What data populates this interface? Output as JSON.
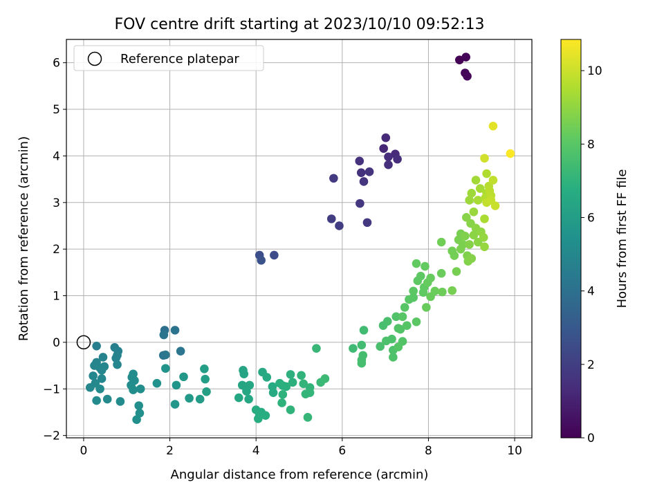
{
  "chart_data": {
    "type": "scatter",
    "title": "FOV centre drift starting at 2023/10/10 09:52:13",
    "xlabel": "Angular distance from reference (arcmin)",
    "ylabel": "Rotation from reference (arcmin)",
    "colorbar_label": "Hours from first FF file",
    "xlim": [
      -0.4,
      10.4
    ],
    "ylim": [
      -2.05,
      6.5
    ],
    "clim": [
      0,
      10.85
    ],
    "colormap": "viridis",
    "grid": true,
    "legend_position": "top-left",
    "x_ticks": [
      0,
      2,
      4,
      6,
      8,
      10
    ],
    "x_tick_labels": [
      "0",
      "2",
      "4",
      "6",
      "8",
      "10"
    ],
    "y_ticks": [
      -2,
      -1,
      0,
      1,
      2,
      3,
      4,
      5,
      6
    ],
    "y_tick_labels": [
      "−2",
      "−1",
      "0",
      "1",
      "2",
      "3",
      "4",
      "5",
      "6"
    ],
    "c_ticks": [
      0,
      2,
      4,
      6,
      8,
      10
    ],
    "c_tick_labels": [
      "0",
      "2",
      "4",
      "6",
      "8",
      "10"
    ],
    "reference": {
      "label": "Reference platepar",
      "x": 0,
      "y": 0
    },
    "points": [
      {
        "x": 8.72,
        "y": 6.06,
        "c": 0.05
      },
      {
        "x": 8.87,
        "y": 6.12,
        "c": 0.1
      },
      {
        "x": 8.85,
        "y": 5.78,
        "c": 0.15
      },
      {
        "x": 8.9,
        "y": 5.71,
        "c": 0.2
      },
      {
        "x": 6.96,
        "y": 4.16,
        "c": 1.2
      },
      {
        "x": 7.01,
        "y": 4.39,
        "c": 1.25
      },
      {
        "x": 7.23,
        "y": 4.04,
        "c": 1.3
      },
      {
        "x": 7.07,
        "y": 3.98,
        "c": 1.35
      },
      {
        "x": 7.28,
        "y": 3.93,
        "c": 1.4
      },
      {
        "x": 7.07,
        "y": 3.81,
        "c": 1.45
      },
      {
        "x": 6.4,
        "y": 3.89,
        "c": 1.5
      },
      {
        "x": 6.44,
        "y": 3.64,
        "c": 1.55
      },
      {
        "x": 6.63,
        "y": 3.66,
        "c": 1.6
      },
      {
        "x": 6.5,
        "y": 3.45,
        "c": 1.65
      },
      {
        "x": 6.41,
        "y": 2.98,
        "c": 1.7
      },
      {
        "x": 6.58,
        "y": 2.57,
        "c": 1.75
      },
      {
        "x": 5.8,
        "y": 3.52,
        "c": 1.85
      },
      {
        "x": 5.75,
        "y": 2.65,
        "c": 1.9
      },
      {
        "x": 5.93,
        "y": 2.5,
        "c": 1.95
      },
      {
        "x": 4.42,
        "y": 1.87,
        "c": 2.5
      },
      {
        "x": 4.08,
        "y": 1.87,
        "c": 2.6
      },
      {
        "x": 4.12,
        "y": 1.76,
        "c": 2.7
      },
      {
        "x": 1.88,
        "y": 0.26,
        "c": 4.0
      },
      {
        "x": 2.12,
        "y": 0.26,
        "c": 4.1
      },
      {
        "x": 1.86,
        "y": 0.16,
        "c": 4.15
      },
      {
        "x": 2.25,
        "y": -0.19,
        "c": 4.2
      },
      {
        "x": 1.85,
        "y": -0.28,
        "c": 4.25
      },
      {
        "x": 1.9,
        "y": -0.27,
        "c": 4.3
      },
      {
        "x": 0.3,
        "y": -0.08,
        "c": 4.6
      },
      {
        "x": 0.72,
        "y": -0.11,
        "c": 4.65
      },
      {
        "x": 0.8,
        "y": -0.19,
        "c": 4.7
      },
      {
        "x": 0.45,
        "y": -0.32,
        "c": 4.75
      },
      {
        "x": 0.78,
        "y": -0.28,
        "c": 4.8
      },
      {
        "x": 0.75,
        "y": -0.34,
        "c": 4.8
      },
      {
        "x": 0.25,
        "y": -0.5,
        "c": 4.85
      },
      {
        "x": 0.3,
        "y": -0.43,
        "c": 4.85
      },
      {
        "x": 0.48,
        "y": -0.52,
        "c": 4.9
      },
      {
        "x": 0.38,
        "y": -0.55,
        "c": 4.9
      },
      {
        "x": 0.42,
        "y": -0.6,
        "c": 4.95
      },
      {
        "x": 0.78,
        "y": -0.48,
        "c": 4.95
      },
      {
        "x": 0.22,
        "y": -0.72,
        "c": 5.0
      },
      {
        "x": 0.42,
        "y": -0.78,
        "c": 5.0
      },
      {
        "x": 0.27,
        "y": -0.88,
        "c": 5.05
      },
      {
        "x": 0.15,
        "y": -0.97,
        "c": 5.05
      },
      {
        "x": 0.38,
        "y": -1.0,
        "c": 5.1
      },
      {
        "x": 0.55,
        "y": -1.22,
        "c": 5.1
      },
      {
        "x": 0.3,
        "y": -1.25,
        "c": 5.15
      },
      {
        "x": 0.85,
        "y": -1.27,
        "c": 5.15
      },
      {
        "x": 1.15,
        "y": -0.68,
        "c": 5.2
      },
      {
        "x": 1.12,
        "y": -0.75,
        "c": 5.2
      },
      {
        "x": 1.18,
        "y": -0.82,
        "c": 5.25
      },
      {
        "x": 1.1,
        "y": -0.92,
        "c": 5.25
      },
      {
        "x": 1.15,
        "y": -1.02,
        "c": 5.3
      },
      {
        "x": 1.32,
        "y": -1.0,
        "c": 5.3
      },
      {
        "x": 1.28,
        "y": -1.36,
        "c": 5.35
      },
      {
        "x": 1.3,
        "y": -1.52,
        "c": 5.35
      },
      {
        "x": 1.23,
        "y": -1.66,
        "c": 5.4
      },
      {
        "x": 1.7,
        "y": -0.88,
        "c": 5.45
      },
      {
        "x": 1.9,
        "y": -0.56,
        "c": 5.5
      },
      {
        "x": 2.15,
        "y": -0.92,
        "c": 5.6
      },
      {
        "x": 2.12,
        "y": -1.33,
        "c": 5.65
      },
      {
        "x": 2.32,
        "y": -0.74,
        "c": 5.75
      },
      {
        "x": 2.45,
        "y": -1.2,
        "c": 5.8
      },
      {
        "x": 2.7,
        "y": -1.22,
        "c": 5.95
      },
      {
        "x": 2.8,
        "y": -0.57,
        "c": 6.0
      },
      {
        "x": 2.82,
        "y": -0.79,
        "c": 6.05
      },
      {
        "x": 2.85,
        "y": -1.06,
        "c": 6.1
      },
      {
        "x": 3.7,
        "y": -0.6,
        "c": 6.3
      },
      {
        "x": 3.72,
        "y": -0.68,
        "c": 6.3
      },
      {
        "x": 3.68,
        "y": -0.92,
        "c": 6.35
      },
      {
        "x": 3.75,
        "y": -0.95,
        "c": 6.35
      },
      {
        "x": 3.85,
        "y": -0.92,
        "c": 6.4
      },
      {
        "x": 3.78,
        "y": -1.05,
        "c": 6.4
      },
      {
        "x": 3.6,
        "y": -1.19,
        "c": 6.45
      },
      {
        "x": 3.83,
        "y": -1.22,
        "c": 6.45
      },
      {
        "x": 4.15,
        "y": -0.64,
        "c": 6.5
      },
      {
        "x": 4.25,
        "y": -0.75,
        "c": 6.55
      },
      {
        "x": 4.38,
        "y": -0.95,
        "c": 6.6
      },
      {
        "x": 4.4,
        "y": -1.08,
        "c": 6.6
      },
      {
        "x": 4.0,
        "y": -1.45,
        "c": 6.65
      },
      {
        "x": 4.12,
        "y": -1.5,
        "c": 6.65
      },
      {
        "x": 4.08,
        "y": -1.56,
        "c": 6.7
      },
      {
        "x": 4.05,
        "y": -1.64,
        "c": 6.7
      },
      {
        "x": 4.22,
        "y": -1.57,
        "c": 6.75
      },
      {
        "x": 4.55,
        "y": -0.88,
        "c": 6.8
      },
      {
        "x": 4.62,
        "y": -0.93,
        "c": 6.85
      },
      {
        "x": 4.7,
        "y": -0.95,
        "c": 6.85
      },
      {
        "x": 4.8,
        "y": -0.69,
        "c": 6.9
      },
      {
        "x": 4.85,
        "y": -0.86,
        "c": 6.9
      },
      {
        "x": 4.62,
        "y": -1.12,
        "c": 6.95
      },
      {
        "x": 4.6,
        "y": -1.3,
        "c": 6.95
      },
      {
        "x": 4.8,
        "y": -1.45,
        "c": 7.0
      },
      {
        "x": 5.05,
        "y": -0.71,
        "c": 7.0
      },
      {
        "x": 5.1,
        "y": -0.89,
        "c": 7.05
      },
      {
        "x": 5.25,
        "y": -0.97,
        "c": 7.05
      },
      {
        "x": 5.15,
        "y": -1.11,
        "c": 7.1
      },
      {
        "x": 5.25,
        "y": -1.08,
        "c": 7.1
      },
      {
        "x": 5.2,
        "y": -1.61,
        "c": 7.15
      },
      {
        "x": 5.4,
        "y": -0.13,
        "c": 7.2
      },
      {
        "x": 5.5,
        "y": -0.86,
        "c": 7.25
      },
      {
        "x": 5.6,
        "y": -0.78,
        "c": 7.3
      },
      {
        "x": 6.25,
        "y": -0.13,
        "c": 7.35
      },
      {
        "x": 6.5,
        "y": 0.26,
        "c": 7.4
      },
      {
        "x": 6.45,
        "y": -0.06,
        "c": 7.45
      },
      {
        "x": 6.48,
        "y": -0.28,
        "c": 7.5
      },
      {
        "x": 6.45,
        "y": -0.38,
        "c": 7.5
      },
      {
        "x": 6.45,
        "y": -0.45,
        "c": 7.55
      },
      {
        "x": 6.95,
        "y": 0.36,
        "c": 7.6
      },
      {
        "x": 7.05,
        "y": 0.45,
        "c": 7.65
      },
      {
        "x": 6.88,
        "y": -0.09,
        "c": 7.65
      },
      {
        "x": 7.02,
        "y": 0.03,
        "c": 7.7
      },
      {
        "x": 7.15,
        "y": 0.07,
        "c": 7.7
      },
      {
        "x": 7.18,
        "y": -0.17,
        "c": 7.75
      },
      {
        "x": 7.18,
        "y": -0.32,
        "c": 7.75
      },
      {
        "x": 7.25,
        "y": 0.55,
        "c": 7.8
      },
      {
        "x": 7.3,
        "y": 0.3,
        "c": 7.8
      },
      {
        "x": 7.35,
        "y": 0.28,
        "c": 7.85
      },
      {
        "x": 7.4,
        "y": 0.02,
        "c": 7.85
      },
      {
        "x": 7.3,
        "y": -0.1,
        "c": 7.9
      },
      {
        "x": 7.5,
        "y": 0.36,
        "c": 7.9
      },
      {
        "x": 7.4,
        "y": 0.55,
        "c": 7.95
      },
      {
        "x": 7.45,
        "y": 0.75,
        "c": 7.95
      },
      {
        "x": 7.55,
        "y": 0.92,
        "c": 8.0
      },
      {
        "x": 7.65,
        "y": 0.96,
        "c": 8.0
      },
      {
        "x": 7.72,
        "y": 0.44,
        "c": 8.05
      },
      {
        "x": 7.65,
        "y": 1.1,
        "c": 8.05
      },
      {
        "x": 7.75,
        "y": 1.32,
        "c": 8.1
      },
      {
        "x": 7.82,
        "y": 1.42,
        "c": 8.1
      },
      {
        "x": 7.88,
        "y": 1.07,
        "c": 8.15
      },
      {
        "x": 7.9,
        "y": 1.18,
        "c": 8.15
      },
      {
        "x": 7.72,
        "y": 1.69,
        "c": 8.2
      },
      {
        "x": 7.92,
        "y": 1.63,
        "c": 8.2
      },
      {
        "x": 7.98,
        "y": 1.28,
        "c": 8.25
      },
      {
        "x": 8.05,
        "y": 1.38,
        "c": 8.25
      },
      {
        "x": 7.95,
        "y": 0.75,
        "c": 8.3
      },
      {
        "x": 8.05,
        "y": 0.98,
        "c": 8.3
      },
      {
        "x": 8.15,
        "y": 1.1,
        "c": 8.35
      },
      {
        "x": 8.3,
        "y": 1.48,
        "c": 8.35
      },
      {
        "x": 8.32,
        "y": 1.08,
        "c": 8.4
      },
      {
        "x": 8.3,
        "y": 2.15,
        "c": 8.45
      },
      {
        "x": 8.55,
        "y": 1.96,
        "c": 8.5
      },
      {
        "x": 8.6,
        "y": 1.86,
        "c": 8.5
      },
      {
        "x": 8.55,
        "y": 1.11,
        "c": 8.55
      },
      {
        "x": 8.65,
        "y": 1.52,
        "c": 8.55
      },
      {
        "x": 8.7,
        "y": 2.2,
        "c": 8.6
      },
      {
        "x": 8.75,
        "y": 2.33,
        "c": 8.6
      },
      {
        "x": 8.8,
        "y": 2.1,
        "c": 8.65
      },
      {
        "x": 8.75,
        "y": 2.0,
        "c": 8.65
      },
      {
        "x": 8.85,
        "y": 2.28,
        "c": 8.7
      },
      {
        "x": 8.9,
        "y": 1.86,
        "c": 8.7
      },
      {
        "x": 8.92,
        "y": 1.74,
        "c": 8.75
      },
      {
        "x": 8.95,
        "y": 2.1,
        "c": 8.8
      },
      {
        "x": 9.0,
        "y": 1.8,
        "c": 8.8
      },
      {
        "x": 8.88,
        "y": 2.68,
        "c": 8.85
      },
      {
        "x": 8.98,
        "y": 2.55,
        "c": 8.85
      },
      {
        "x": 9.05,
        "y": 2.3,
        "c": 8.9
      },
      {
        "x": 9.15,
        "y": 2.15,
        "c": 8.9
      },
      {
        "x": 9.1,
        "y": 2.45,
        "c": 8.95
      },
      {
        "x": 9.22,
        "y": 2.37,
        "c": 9.0
      },
      {
        "x": 9.28,
        "y": 2.25,
        "c": 9.05
      },
      {
        "x": 9.3,
        "y": 2.05,
        "c": 9.1
      },
      {
        "x": 9.05,
        "y": 2.8,
        "c": 9.15
      },
      {
        "x": 8.95,
        "y": 3.05,
        "c": 9.2
      },
      {
        "x": 9.0,
        "y": 3.2,
        "c": 9.25
      },
      {
        "x": 9.1,
        "y": 3.48,
        "c": 9.3
      },
      {
        "x": 9.2,
        "y": 3.3,
        "c": 9.35
      },
      {
        "x": 9.15,
        "y": 3.05,
        "c": 9.4
      },
      {
        "x": 9.3,
        "y": 2.65,
        "c": 9.45
      },
      {
        "x": 9.35,
        "y": 3.2,
        "c": 9.5
      },
      {
        "x": 9.35,
        "y": 3.62,
        "c": 9.55
      },
      {
        "x": 9.32,
        "y": 3.1,
        "c": 9.6
      },
      {
        "x": 9.4,
        "y": 3.35,
        "c": 9.65
      },
      {
        "x": 9.42,
        "y": 3.25,
        "c": 9.7
      },
      {
        "x": 9.45,
        "y": 3.15,
        "c": 9.75
      },
      {
        "x": 9.5,
        "y": 3.48,
        "c": 9.8
      },
      {
        "x": 9.35,
        "y": 3.0,
        "c": 9.85
      },
      {
        "x": 9.45,
        "y": 3.05,
        "c": 9.9
      },
      {
        "x": 9.55,
        "y": 2.93,
        "c": 9.95
      },
      {
        "x": 9.3,
        "y": 3.95,
        "c": 10.1
      },
      {
        "x": 9.5,
        "y": 4.64,
        "c": 10.4
      },
      {
        "x": 9.9,
        "y": 4.05,
        "c": 10.8
      }
    ]
  }
}
